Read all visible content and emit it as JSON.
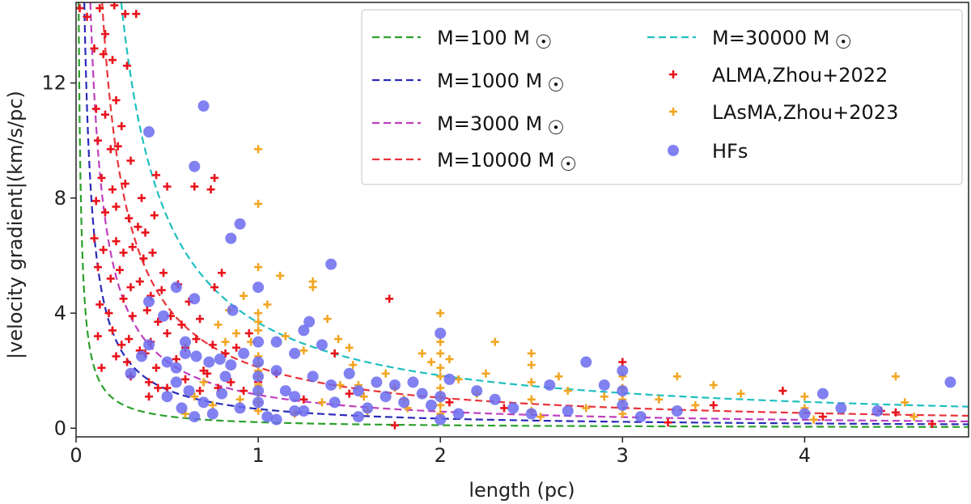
{
  "chart_data": {
    "type": "scatter",
    "title": "",
    "xlabel": "length (pc)",
    "ylabel": "|velocity gradient|(km/s/pc)",
    "xlim": [
      0,
      4.9
    ],
    "ylim": [
      -0.3,
      14.8
    ],
    "xticks": [
      0,
      1,
      2,
      3,
      4
    ],
    "yticks": [
      0,
      4,
      8,
      12
    ],
    "legend_position": "top-right",
    "lines": [
      {
        "name": "M=100 M$_\\odot$",
        "label_main": "M=100 M",
        "mass": 100,
        "color": "#2ca02c",
        "k": 0.21
      },
      {
        "name": "M=1000 M$_\\odot$",
        "label_main": "M=1000 M",
        "mass": 1000,
        "color": "#2a2ab8",
        "k": 0.67
      },
      {
        "name": "M=3000 M$_\\odot$",
        "label_main": "M=3000 M",
        "mass": 3000,
        "color": "#bf3fbf",
        "k": 1.16
      },
      {
        "name": "M=10000 M$_\\odot$",
        "label_main": "M=10000 M",
        "mass": 10000,
        "color": "#e8343a",
        "k": 2.12
      },
      {
        "name": "M=30000 M$_\\odot$",
        "label_main": "M=30000 M",
        "mass": 30000,
        "color": "#1fbfbf",
        "k": 3.67
      }
    ],
    "sun_symbol": "☉",
    "series": [
      {
        "name": "ALMA,Zhou+2022",
        "marker": "plus",
        "color": "#e8141c",
        "points": [
          [
            0.02,
            14.6
          ],
          [
            0.06,
            14.3
          ],
          [
            0.13,
            14.6
          ],
          [
            0.16,
            13.7
          ],
          [
            0.21,
            14.7
          ],
          [
            0.27,
            14.4
          ],
          [
            0.33,
            14.4
          ],
          [
            0.1,
            13.2
          ],
          [
            0.15,
            13.0
          ],
          [
            0.2,
            12.8
          ],
          [
            0.28,
            12.6
          ],
          [
            0.11,
            11.1
          ],
          [
            0.16,
            10.9
          ],
          [
            0.22,
            11.4
          ],
          [
            0.25,
            10.5
          ],
          [
            0.12,
            10.0
          ],
          [
            0.19,
            9.7
          ],
          [
            0.23,
            9.8
          ],
          [
            0.3,
            9.3
          ],
          [
            0.14,
            8.7
          ],
          [
            0.2,
            8.3
          ],
          [
            0.27,
            8.5
          ],
          [
            0.36,
            8.0
          ],
          [
            0.44,
            8.8
          ],
          [
            0.5,
            8.4
          ],
          [
            0.65,
            8.4
          ],
          [
            0.76,
            8.7
          ],
          [
            0.74,
            8.3
          ],
          [
            0.11,
            7.9
          ],
          [
            0.16,
            7.5
          ],
          [
            0.22,
            7.7
          ],
          [
            0.29,
            7.3
          ],
          [
            0.34,
            7.0
          ],
          [
            0.38,
            6.8
          ],
          [
            0.43,
            7.4
          ],
          [
            0.1,
            6.6
          ],
          [
            0.15,
            6.2
          ],
          [
            0.22,
            6.5
          ],
          [
            0.26,
            6.1
          ],
          [
            0.31,
            6.3
          ],
          [
            0.37,
            5.9
          ],
          [
            0.42,
            6.1
          ],
          [
            0.48,
            5.4
          ],
          [
            0.12,
            5.6
          ],
          [
            0.19,
            5.2
          ],
          [
            0.24,
            5.5
          ],
          [
            0.3,
            4.9
          ],
          [
            0.35,
            5.1
          ],
          [
            0.41,
            4.6
          ],
          [
            0.47,
            4.8
          ],
          [
            0.56,
            5.0
          ],
          [
            0.62,
            4.4
          ],
          [
            0.13,
            4.3
          ],
          [
            0.18,
            4.0
          ],
          [
            0.26,
            4.5
          ],
          [
            0.31,
            3.9
          ],
          [
            0.39,
            4.1
          ],
          [
            0.45,
            3.7
          ],
          [
            0.52,
            3.9
          ],
          [
            0.58,
            3.6
          ],
          [
            0.68,
            3.8
          ],
          [
            0.76,
            4.9
          ],
          [
            0.8,
            5.4
          ],
          [
            0.12,
            3.2
          ],
          [
            0.2,
            3.4
          ],
          [
            0.25,
            2.9
          ],
          [
            0.29,
            3.1
          ],
          [
            0.35,
            2.7
          ],
          [
            0.41,
            3.0
          ],
          [
            0.5,
            3.3
          ],
          [
            0.6,
            2.8
          ],
          [
            0.66,
            3.1
          ],
          [
            0.75,
            2.9
          ],
          [
            0.22,
            2.5
          ],
          [
            0.28,
            2.3
          ],
          [
            0.38,
            2.6
          ],
          [
            0.44,
            2.1
          ],
          [
            0.55,
            2.4
          ],
          [
            0.7,
            2.0
          ],
          [
            0.82,
            2.6
          ],
          [
            0.88,
            2.8
          ],
          [
            0.95,
            3.3
          ],
          [
            0.14,
            2.1
          ],
          [
            0.3,
            1.8
          ],
          [
            0.4,
            1.6
          ],
          [
            0.5,
            1.4
          ],
          [
            0.6,
            1.7
          ],
          [
            0.68,
            1.3
          ],
          [
            0.72,
            1.9
          ],
          [
            0.78,
            1.4
          ],
          [
            0.85,
            1.6
          ],
          [
            0.92,
            1.3
          ],
          [
            1.0,
            1.6
          ],
          [
            0.4,
            1.1
          ],
          [
            0.45,
            1.4
          ],
          [
            1.72,
            4.5
          ],
          [
            1.42,
            2.6
          ],
          [
            1.75,
            0.1
          ],
          [
            3.0,
            2.3
          ],
          [
            3.25,
            0.2
          ],
          [
            3.5,
            0.8
          ],
          [
            3.88,
            1.3
          ],
          [
            4.42,
            0.6
          ],
          [
            4.1,
            0.4
          ],
          [
            4.7,
            0.15
          ],
          [
            4.5,
            0.55
          ],
          [
            1.25,
            1.0
          ],
          [
            1.1,
            1.9
          ],
          [
            1.5,
            1.2
          ],
          [
            2.05,
            0.9
          ],
          [
            2.35,
            0.7
          ]
        ]
      },
      {
        "name": "LAsMA,Zhou+2023",
        "marker": "plus",
        "color": "#f2a623",
        "points": [
          [
            1.0,
            9.7
          ],
          [
            1.0,
            7.8
          ],
          [
            1.0,
            5.6
          ],
          [
            1.12,
            5.3
          ],
          [
            1.3,
            5.1
          ],
          [
            1.3,
            4.9
          ],
          [
            1.05,
            4.3
          ],
          [
            0.92,
            4.6
          ],
          [
            0.84,
            4.1
          ],
          [
            0.78,
            3.6
          ],
          [
            0.82,
            3.0
          ],
          [
            0.88,
            3.3
          ],
          [
            0.96,
            3.0
          ],
          [
            1.0,
            2.5
          ],
          [
            1.0,
            2.2
          ],
          [
            1.0,
            2.0
          ],
          [
            1.0,
            1.8
          ],
          [
            1.0,
            1.5
          ],
          [
            1.0,
            1.2
          ],
          [
            1.0,
            0.9
          ],
          [
            1.0,
            0.6
          ],
          [
            1.0,
            3.4
          ],
          [
            1.0,
            3.7
          ],
          [
            1.0,
            4.0
          ],
          [
            1.15,
            3.2
          ],
          [
            1.25,
            2.7
          ],
          [
            1.38,
            3.8
          ],
          [
            1.44,
            3.1
          ],
          [
            1.5,
            2.8
          ],
          [
            1.52,
            2.2
          ],
          [
            1.55,
            1.5
          ],
          [
            1.58,
            1.1
          ],
          [
            1.6,
            0.6
          ],
          [
            1.7,
            1.9
          ],
          [
            1.75,
            1.4
          ],
          [
            1.8,
            1.0
          ],
          [
            1.82,
            0.7
          ],
          [
            1.9,
            2.6
          ],
          [
            1.95,
            2.3
          ],
          [
            2.0,
            4.0
          ],
          [
            2.0,
            3.0
          ],
          [
            2.0,
            2.6
          ],
          [
            2.0,
            2.1
          ],
          [
            2.0,
            1.8
          ],
          [
            2.0,
            1.4
          ],
          [
            2.0,
            1.1
          ],
          [
            2.0,
            0.8
          ],
          [
            2.0,
            0.5
          ],
          [
            2.05,
            2.4
          ],
          [
            2.1,
            1.7
          ],
          [
            2.2,
            1.2
          ],
          [
            2.25,
            1.9
          ],
          [
            2.3,
            3.0
          ],
          [
            2.5,
            2.6
          ],
          [
            2.5,
            2.2
          ],
          [
            2.5,
            1.6
          ],
          [
            2.5,
            1.0
          ],
          [
            2.5,
            0.6
          ],
          [
            2.55,
            0.4
          ],
          [
            2.65,
            1.8
          ],
          [
            2.7,
            1.3
          ],
          [
            2.8,
            0.7
          ],
          [
            2.9,
            1.1
          ],
          [
            3.0,
            1.8
          ],
          [
            3.0,
            1.4
          ],
          [
            3.0,
            1.0
          ],
          [
            3.0,
            0.5
          ],
          [
            3.2,
            1.0
          ],
          [
            3.3,
            1.8
          ],
          [
            3.4,
            0.8
          ],
          [
            3.5,
            1.5
          ],
          [
            3.65,
            1.2
          ],
          [
            4.0,
            1.1
          ],
          [
            4.0,
            0.7
          ],
          [
            4.05,
            0.3
          ],
          [
            4.5,
            1.8
          ],
          [
            4.55,
            0.9
          ],
          [
            4.6,
            0.4
          ],
          [
            0.65,
            1.1
          ],
          [
            0.7,
            1.6
          ],
          [
            0.75,
            0.8
          ],
          [
            0.9,
            1.0
          ],
          [
            1.2,
            0.5
          ],
          [
            1.35,
            0.9
          ],
          [
            1.45,
            1.5
          ],
          [
            0.6,
            0.5
          ]
        ]
      },
      {
        "name": "HFs",
        "marker": "circle",
        "color": "#6b6bee",
        "points": [
          [
            0.7,
            11.2
          ],
          [
            0.4,
            10.3
          ],
          [
            0.65,
            9.1
          ],
          [
            0.9,
            7.1
          ],
          [
            0.85,
            6.6
          ],
          [
            1.4,
            5.7
          ],
          [
            1.0,
            4.9
          ],
          [
            0.55,
            4.9
          ],
          [
            0.65,
            4.5
          ],
          [
            0.4,
            4.4
          ],
          [
            0.48,
            3.9
          ],
          [
            0.86,
            4.1
          ],
          [
            1.28,
            3.7
          ],
          [
            1.25,
            3.4
          ],
          [
            0.6,
            3.0
          ],
          [
            0.4,
            2.9
          ],
          [
            0.36,
            2.5
          ],
          [
            0.3,
            1.9
          ],
          [
            0.5,
            2.3
          ],
          [
            0.55,
            2.1
          ],
          [
            0.6,
            2.6
          ],
          [
            0.66,
            2.5
          ],
          [
            0.73,
            2.3
          ],
          [
            0.79,
            2.4
          ],
          [
            0.85,
            2.2
          ],
          [
            0.92,
            2.6
          ],
          [
            1.0,
            3.0
          ],
          [
            1.0,
            2.3
          ],
          [
            1.0,
            1.8
          ],
          [
            1.0,
            1.3
          ],
          [
            1.0,
            0.9
          ],
          [
            1.05,
            0.4
          ],
          [
            1.1,
            3.0
          ],
          [
            1.1,
            2.0
          ],
          [
            1.15,
            1.3
          ],
          [
            1.2,
            2.6
          ],
          [
            1.2,
            1.1
          ],
          [
            1.25,
            0.6
          ],
          [
            1.3,
            1.8
          ],
          [
            1.35,
            2.9
          ],
          [
            1.4,
            1.5
          ],
          [
            1.42,
            0.9
          ],
          [
            1.5,
            1.9
          ],
          [
            1.55,
            1.3
          ],
          [
            1.6,
            0.7
          ],
          [
            1.65,
            1.6
          ],
          [
            1.7,
            1.1
          ],
          [
            1.75,
            1.5
          ],
          [
            1.8,
            0.9
          ],
          [
            1.85,
            1.6
          ],
          [
            1.9,
            1.2
          ],
          [
            1.95,
            0.8
          ],
          [
            2.0,
            3.3
          ],
          [
            2.0,
            1.1
          ],
          [
            2.0,
            0.3
          ],
          [
            2.05,
            1.7
          ],
          [
            2.1,
            0.5
          ],
          [
            2.2,
            1.3
          ],
          [
            2.3,
            1.0
          ],
          [
            2.4,
            0.7
          ],
          [
            2.5,
            0.5
          ],
          [
            2.6,
            1.5
          ],
          [
            2.7,
            0.6
          ],
          [
            2.8,
            2.3
          ],
          [
            2.9,
            1.5
          ],
          [
            3.0,
            2.0
          ],
          [
            3.0,
            1.3
          ],
          [
            3.0,
            0.8
          ],
          [
            3.1,
            0.4
          ],
          [
            3.3,
            0.6
          ],
          [
            4.0,
            0.5
          ],
          [
            4.1,
            1.2
          ],
          [
            4.2,
            0.7
          ],
          [
            4.4,
            0.6
          ],
          [
            4.8,
            1.6
          ],
          [
            0.55,
            1.6
          ],
          [
            0.62,
            1.3
          ],
          [
            0.7,
            0.9
          ],
          [
            0.75,
            0.5
          ],
          [
            0.8,
            1.2
          ],
          [
            0.9,
            0.7
          ],
          [
            1.1,
            0.3
          ],
          [
            1.2,
            0.6
          ],
          [
            1.55,
            0.4
          ],
          [
            0.5,
            1.1
          ],
          [
            0.58,
            0.7
          ],
          [
            0.65,
            0.4
          ],
          [
            0.82,
            1.8
          ]
        ]
      }
    ]
  }
}
